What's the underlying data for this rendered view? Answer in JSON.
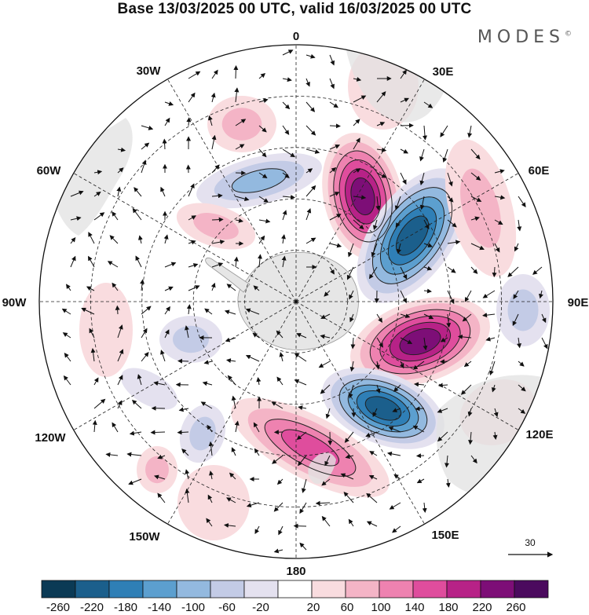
{
  "header": {
    "title": "Base 13/03/2025 00 UTC, valid 16/03/2025 00 UTC",
    "brand": "MODES"
  },
  "map": {
    "projection": "south-polar-stereographic",
    "longitude_labels": [
      "0",
      "30E",
      "60E",
      "90E",
      "120E",
      "150E",
      "180",
      "150W",
      "120W",
      "90W",
      "60W",
      "30W"
    ],
    "graticule": true,
    "wind_vector_reference": "30",
    "anomaly_fields": [
      {
        "id": "pos-45E",
        "value": 250
      },
      {
        "id": "neg-60E",
        "value": -260
      },
      {
        "id": "pos-105E",
        "value": 260
      },
      {
        "id": "neg-140E",
        "value": -260
      },
      {
        "id": "pos-175E",
        "value": 170
      },
      {
        "id": "neg-30W",
        "value": -120
      },
      {
        "id": "pos-10W",
        "value": 90
      },
      {
        "id": "neg-110W",
        "value": -110
      },
      {
        "id": "neg-130W",
        "value": -100
      },
      {
        "id": "pos-60W",
        "value": 90
      },
      {
        "id": "pos-140W",
        "value": 60
      },
      {
        "id": "pos-30E",
        "value": 40
      },
      {
        "id": "pos-70E",
        "value": 80
      },
      {
        "id": "neg-85E",
        "value": -100
      },
      {
        "id": "pos-120E",
        "value": 60
      },
      {
        "id": "pos-155W",
        "value": 80
      },
      {
        "id": "neg-105W",
        "value": -40
      },
      {
        "id": "pos-75W",
        "value": 40
      }
    ]
  },
  "colorbar": {
    "labels": [
      "-260",
      "-220",
      "-180",
      "-140",
      "-100",
      "-60",
      "-20",
      "20",
      "60",
      "100",
      "140",
      "180",
      "220",
      "260"
    ],
    "colors": [
      "#0b3a55",
      "#1b5f8c",
      "#2f7fb6",
      "#5c9fcf",
      "#93b9df",
      "#c3cbe6",
      "#e4e1ef",
      "#ffffff",
      "#f9dcdf",
      "#f4b4c6",
      "#ee82b0",
      "#df4d9d",
      "#b72287",
      "#7d0e77",
      "#4b0a5e"
    ]
  }
}
